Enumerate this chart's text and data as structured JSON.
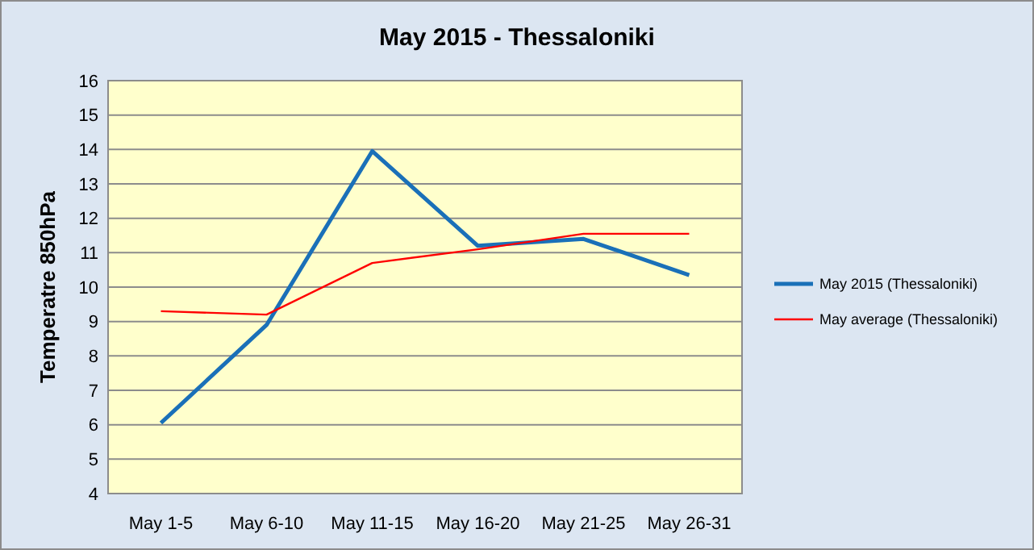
{
  "chart_data": {
    "type": "line",
    "title": "May 2015 - Thessaloniki",
    "ylabel": "Temperatre 850hPa",
    "categories": [
      "May 1-5",
      "May 6-10",
      "May 11-15",
      "May 16-20",
      "May 21-25",
      "May 26-31"
    ],
    "series": [
      {
        "name": "May 2015 (Thessaloniki)",
        "color": "#1a70b8",
        "values": [
          6.05,
          8.9,
          13.95,
          11.2,
          11.4,
          10.35
        ]
      },
      {
        "name": "May average (Thessaloniki)",
        "color": "#ff0000",
        "values": [
          9.3,
          9.2,
          10.7,
          11.1,
          11.55,
          11.55
        ]
      }
    ],
    "ylim": [
      4,
      16
    ],
    "yticks": [
      4,
      5,
      6,
      7,
      8,
      9,
      10,
      11,
      12,
      13,
      14,
      15,
      16
    ],
    "grid": "y",
    "legend": "right",
    "marker": "none",
    "line_style": "solid"
  }
}
